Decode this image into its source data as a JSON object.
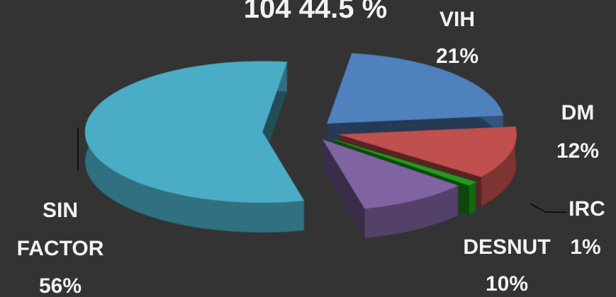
{
  "chart_data": {
    "type": "pie",
    "title": "104  44.5 %",
    "categories": [
      "VIH",
      "DM",
      "IRC",
      "DESNUT",
      "SIN FACTOR"
    ],
    "values": [
      21,
      12,
      1,
      10,
      56
    ],
    "value_labels": [
      "21%",
      "12%",
      "1%",
      "10%",
      "56%"
    ],
    "colors": [
      "#4f81bd",
      "#c0504d",
      "#1e9e1e",
      "#8064a2",
      "#4bacc6"
    ]
  }
}
